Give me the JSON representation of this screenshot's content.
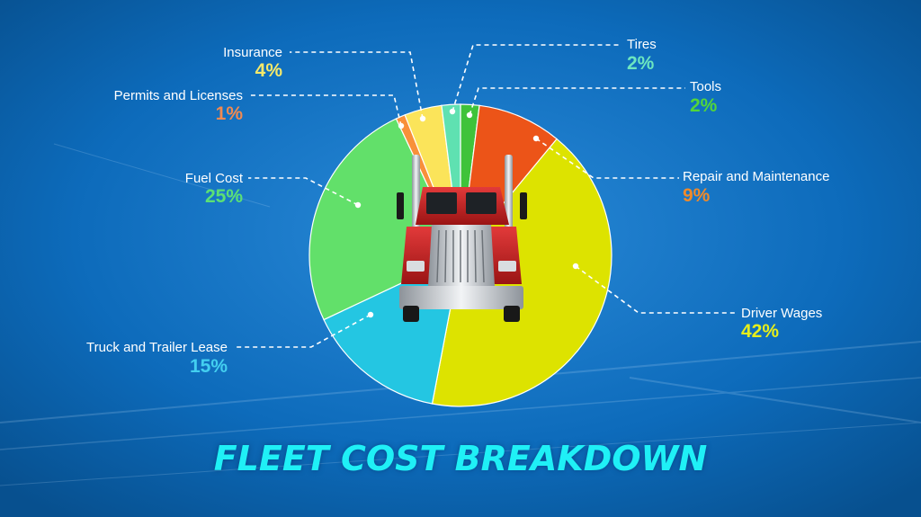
{
  "chart_data": {
    "type": "pie",
    "title": "FLEET COST BREAKDOWN",
    "slices": [
      {
        "label": "Tools",
        "value": 2,
        "display": "2%",
        "color": "#3fc33a",
        "label_color": "#52d63a"
      },
      {
        "label": "Repair and Maintenance",
        "value": 9,
        "display": "9%",
        "color": "#ec5418",
        "label_color": "#f08a2a"
      },
      {
        "label": "Driver Wages",
        "value": 42,
        "display": "42%",
        "color": "#dde300",
        "label_color": "#e7ee1a"
      },
      {
        "label": "Truck and Trailer Lease",
        "value": 15,
        "display": "15%",
        "color": "#24c6e2",
        "label_color": "#43cff0"
      },
      {
        "label": "Fuel Cost",
        "value": 25,
        "display": "25%",
        "color": "#62e06a",
        "label_color": "#5be075"
      },
      {
        "label": "Permits and Licenses",
        "value": 1,
        "display": "1%",
        "color": "#f8903a",
        "label_color": "#f08a52"
      },
      {
        "label": "Insurance",
        "value": 4,
        "display": "4%",
        "color": "#fbe45a",
        "label_color": "#f6e96a"
      },
      {
        "label": "Tires",
        "value": 2,
        "display": "2%",
        "color": "#5fe1b1",
        "label_color": "#6ce6c0"
      }
    ]
  },
  "colors": {
    "background": "#0a66b6",
    "title": "#1ff0f6",
    "leader_line": "#ffffff"
  },
  "icons": {
    "center_image": "semi-truck-front-icon"
  }
}
